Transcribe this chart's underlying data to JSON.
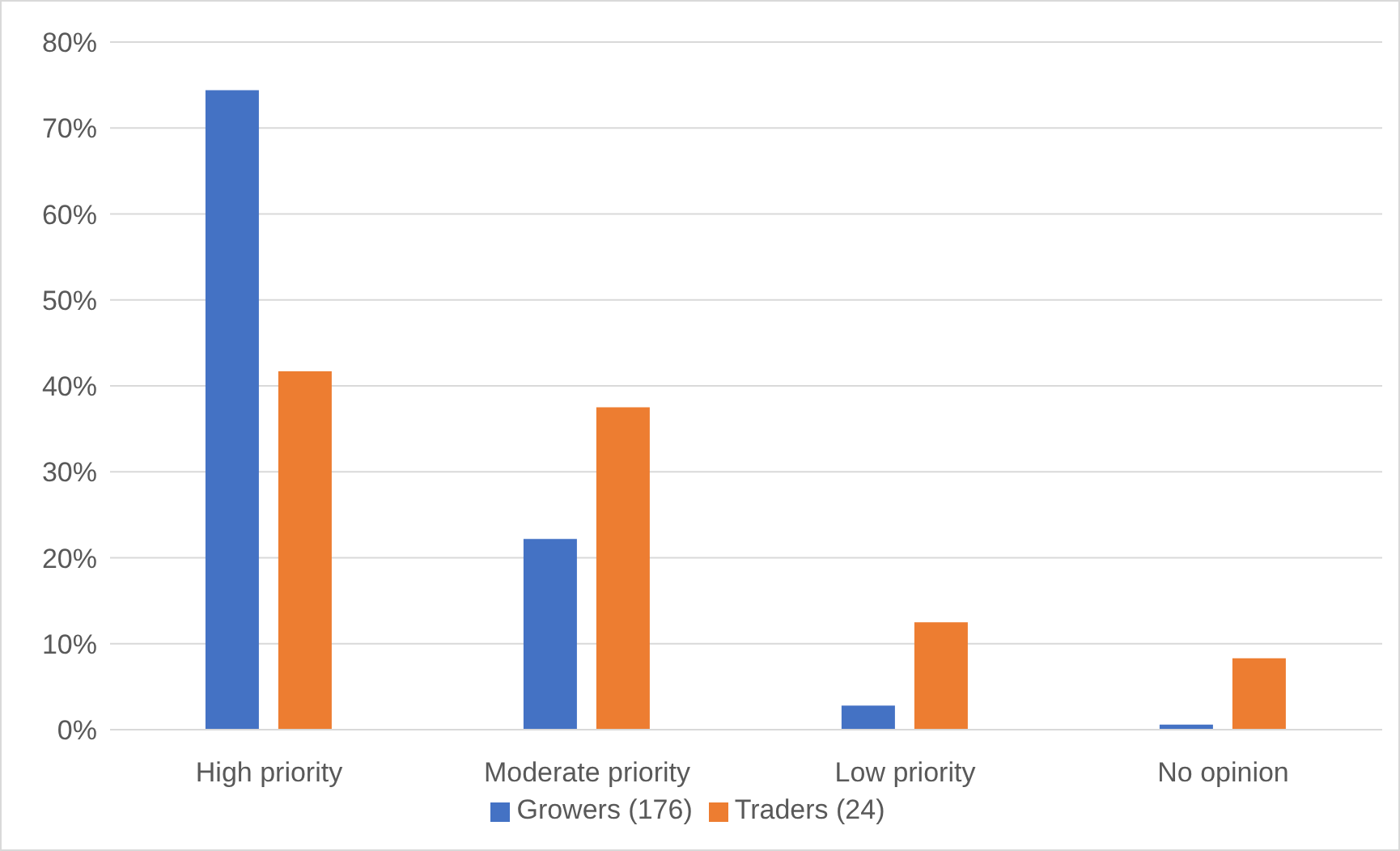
{
  "chart_data": {
    "type": "bar",
    "categories": [
      "High priority",
      "Moderate priority",
      "Low priority",
      "No opinion"
    ],
    "series": [
      {
        "name": "Growers (176)",
        "color": "#4472c4",
        "values": [
          74.4,
          22.2,
          2.8,
          0.6
        ]
      },
      {
        "name": "Traders (24)",
        "color": "#ed7d31",
        "values": [
          41.7,
          37.5,
          12.5,
          8.3
        ]
      }
    ],
    "ylim": [
      0,
      80
    ],
    "yticks": [
      {
        "value": 0,
        "label": "0%"
      },
      {
        "value": 10,
        "label": "10%"
      },
      {
        "value": 20,
        "label": "20%"
      },
      {
        "value": 30,
        "label": "30%"
      },
      {
        "value": 40,
        "label": "40%"
      },
      {
        "value": 50,
        "label": "50%"
      },
      {
        "value": 60,
        "label": "60%"
      },
      {
        "value": 70,
        "label": "70%"
      },
      {
        "value": 80,
        "label": "80%"
      }
    ],
    "grid": "y",
    "legend": "bottom"
  }
}
